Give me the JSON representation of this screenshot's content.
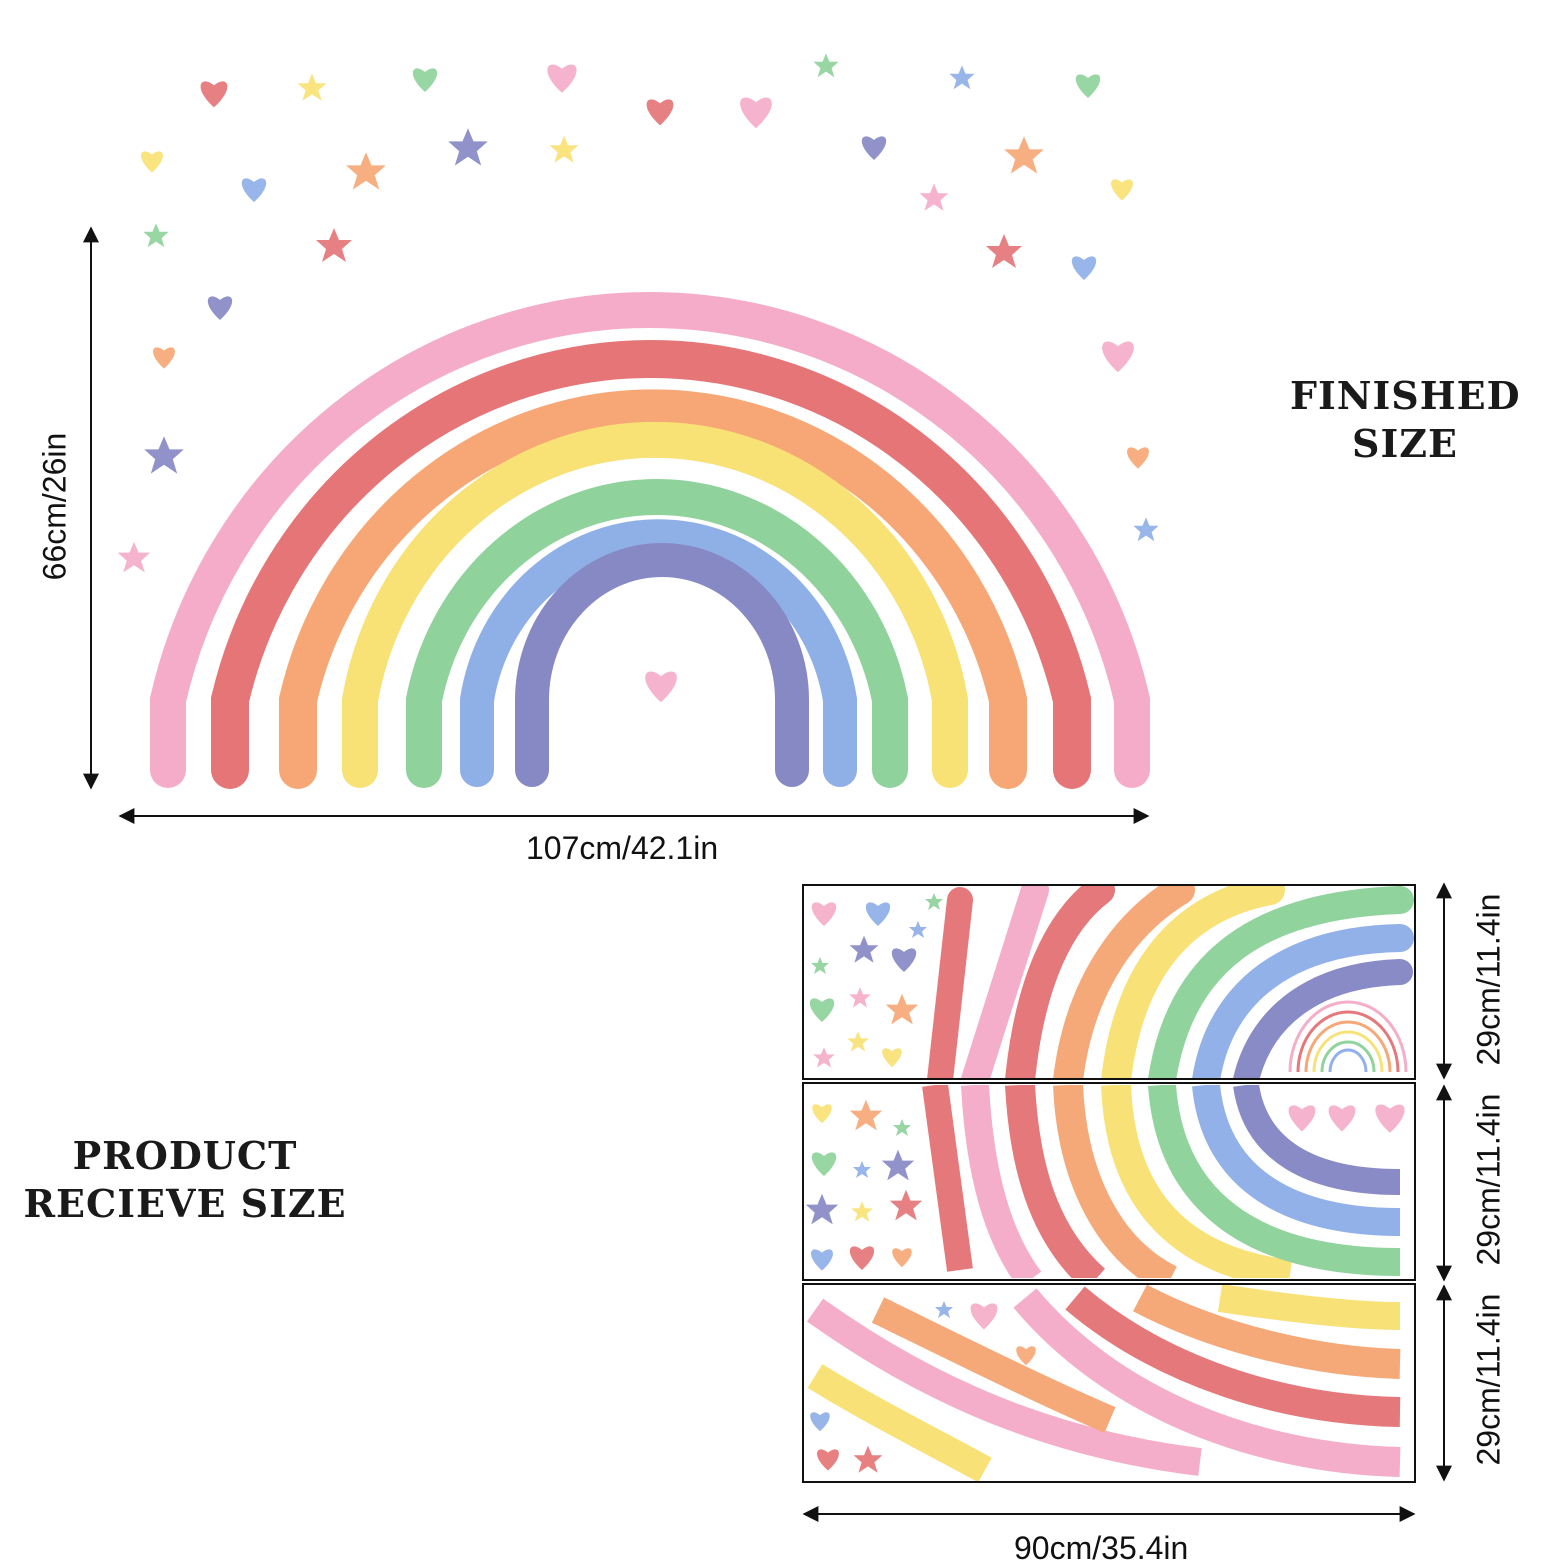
{
  "finished": {
    "heading_line1": "FINISHED",
    "heading_line2": "SIZE",
    "height_label": "66cm/26in",
    "width_label": "107cm/42.1in"
  },
  "received": {
    "heading_line1": "PRODUCT",
    "heading_line2": "RECIEVE SIZE",
    "sheet_height_labels": [
      "29cm/11.4in",
      "29cm/11.4in",
      "29cm/11.4in"
    ],
    "width_label": "90cm/35.4in"
  },
  "colors": {
    "pink": "#f4a6c4",
    "red": "#e36a6c",
    "orange": "#f6a06a",
    "yellow": "#f8df6a",
    "green": "#86cf93",
    "blue": "#86a9e6",
    "purple": "#7d7fc0"
  }
}
